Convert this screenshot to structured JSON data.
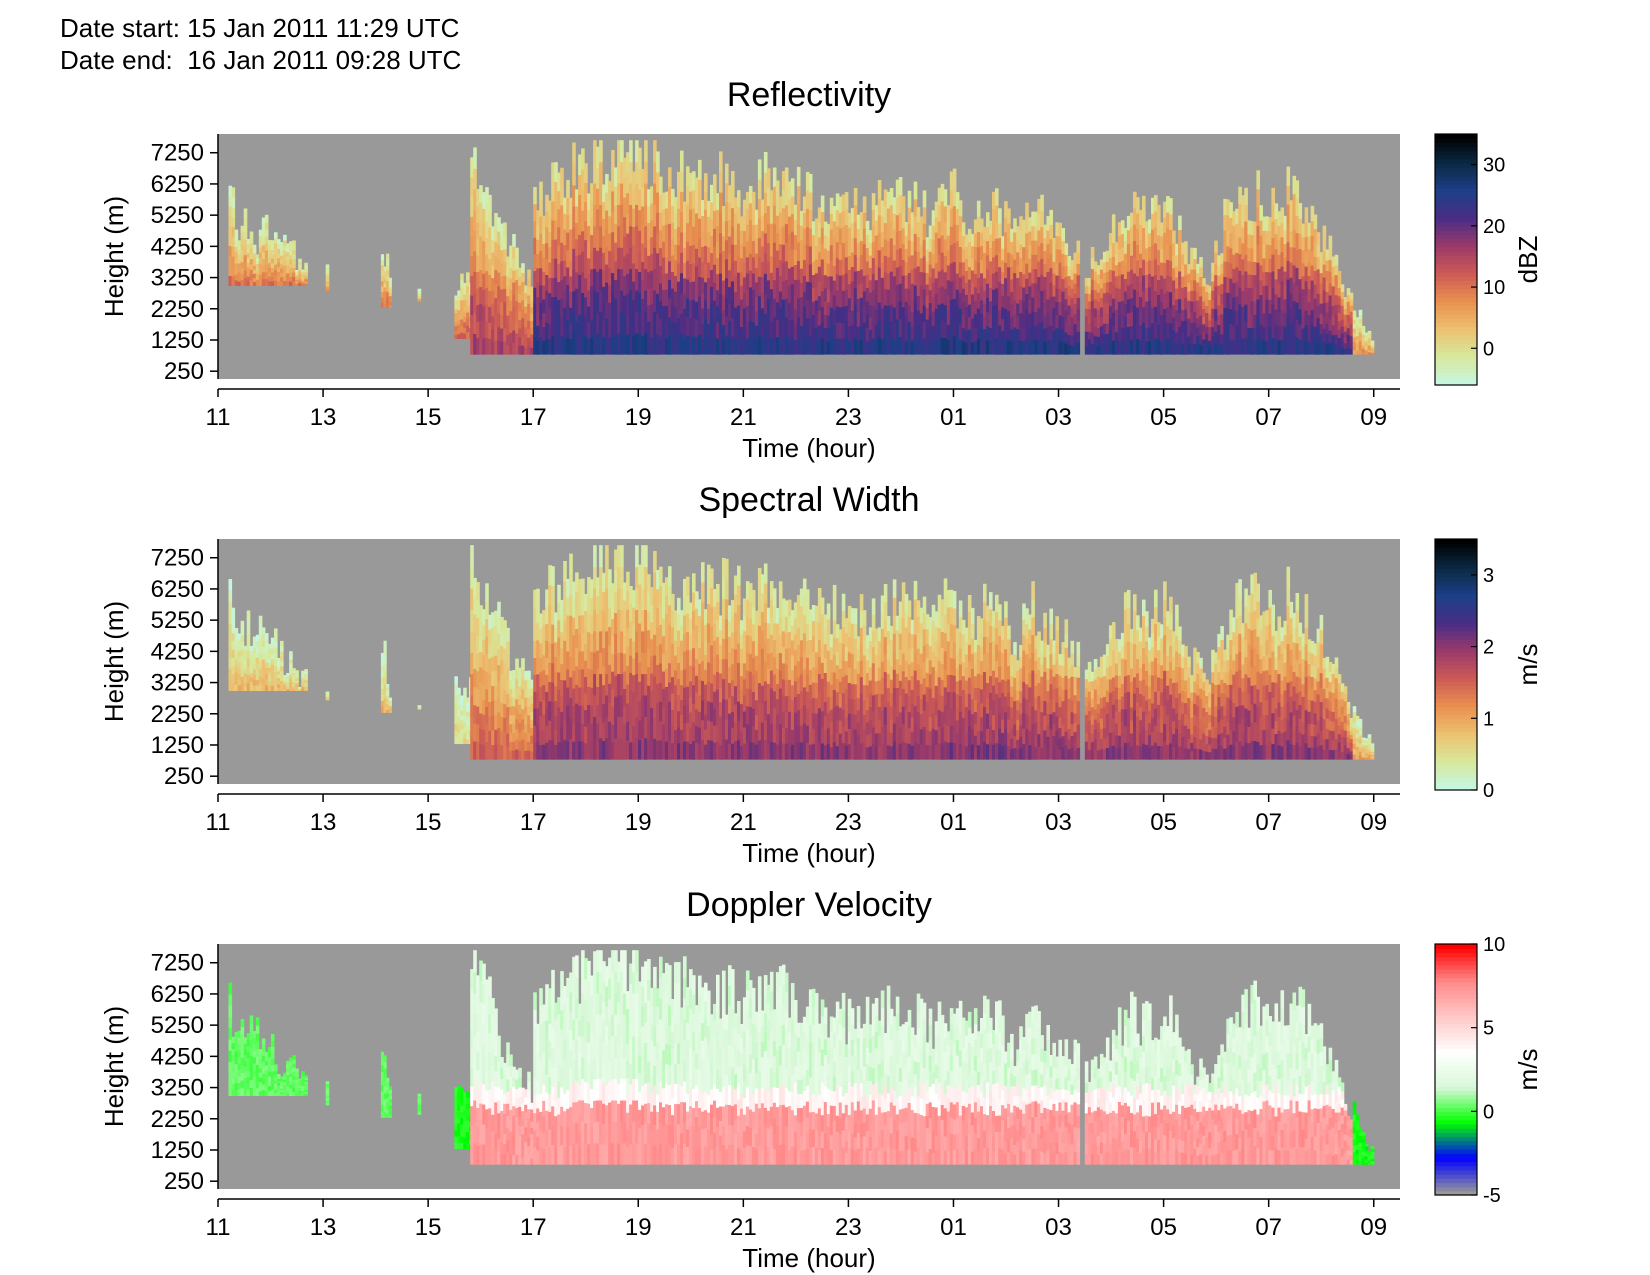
{
  "header": {
    "date_start": "Date start: 15 Jan 2011 11:29 UTC",
    "date_end": "Date end:  16 Jan 2011 09:28 UTC"
  },
  "chart_data": [
    {
      "type": "heatmap",
      "title": "Reflectivity",
      "xlabel": "Time (hour)",
      "ylabel": "Height (m)",
      "x_ticks": [
        "11",
        "13",
        "15",
        "17",
        "19",
        "21",
        "23",
        "01",
        "03",
        "05",
        "07",
        "09"
      ],
      "y_ticks": [
        "250",
        "1250",
        "2250",
        "3250",
        "4250",
        "5250",
        "6250",
        "7250"
      ],
      "xlim": [
        11,
        33.5
      ],
      "ylim": [
        0,
        7850
      ],
      "colorbar": {
        "label": "dBZ",
        "ticks": [
          "0",
          "10",
          "20",
          "30"
        ],
        "range": [
          -6,
          35
        ],
        "colors": [
          "#c6f6e0",
          "#d8e89a",
          "#ecc070",
          "#e8904f",
          "#cc5a55",
          "#9a3a6a",
          "#4a2d85",
          "#1d3f88",
          "#0b2a45",
          "#000000"
        ]
      },
      "background": "#999999",
      "segments": [
        {
          "start": 11.2,
          "end": 12.7,
          "base": 3000,
          "tops": [
            5700,
            5200,
            4900,
            4700,
            4400,
            4100,
            3500
          ],
          "level": 0.4
        },
        {
          "start": 13.05,
          "end": 13.1,
          "base": 2800,
          "tops": [
            3500
          ],
          "level": 0.35
        },
        {
          "start": 14.1,
          "end": 14.3,
          "base": 2300,
          "tops": [
            4600,
            4200,
            3300
          ],
          "level": 0.4
        },
        {
          "start": 14.8,
          "end": 14.85,
          "base": 2500,
          "tops": [
            3000
          ],
          "level": 0.3
        },
        {
          "start": 15.5,
          "end": 16.0,
          "base": 1300,
          "tops": [
            3200,
            3300,
            3400
          ],
          "level": 0.45
        },
        {
          "start": 15.8,
          "end": 17.0,
          "base": 800,
          "tops": [
            7500,
            6500,
            5000,
            4000,
            3200
          ],
          "level": 0.55
        },
        {
          "start": 17.0,
          "end": 24.7,
          "base": 800,
          "tops": [
            6000,
            6500,
            7200,
            7500,
            7500,
            6500,
            6800,
            6500,
            6300,
            6800,
            6000,
            5800,
            5500,
            5800,
            6000,
            5200
          ],
          "level": 0.78
        },
        {
          "start": 24.7,
          "end": 27.4,
          "base": 800,
          "tops": [
            5800,
            6200,
            5400,
            5900,
            5600,
            4700,
            6000,
            5200,
            4800,
            4400
          ],
          "level": 0.8
        },
        {
          "start": 27.5,
          "end": 32.6,
          "base": 800,
          "tops": [
            3800,
            4300,
            5800,
            5500,
            6000,
            4200,
            3500,
            5600,
            6200,
            5700,
            6300,
            5500,
            4300,
            2500
          ],
          "level": 0.78
        },
        {
          "start": 32.6,
          "end": 33.0,
          "base": 800,
          "tops": [
            2500,
            1800,
            1300
          ],
          "level": 0.35
        }
      ]
    },
    {
      "type": "heatmap",
      "title": "Spectral Width",
      "xlabel": "Time (hour)",
      "ylabel": "Height (m)",
      "x_ticks": [
        "11",
        "13",
        "15",
        "17",
        "19",
        "21",
        "23",
        "01",
        "03",
        "05",
        "07",
        "09"
      ],
      "y_ticks": [
        "250",
        "1250",
        "2250",
        "3250",
        "4250",
        "5250",
        "6250",
        "7250"
      ],
      "xlim": [
        11,
        33.5
      ],
      "ylim": [
        0,
        7850
      ],
      "colorbar": {
        "label": "m/s",
        "ticks": [
          "0",
          "1",
          "2",
          "3"
        ],
        "range": [
          0,
          3.5
        ],
        "colors": [
          "#c6f6e0",
          "#d8e89a",
          "#ecc070",
          "#e8904f",
          "#cc5a55",
          "#9a3a6a",
          "#4a2d85",
          "#1d3f88",
          "#0b2a45",
          "#000000"
        ]
      },
      "background": "#999999",
      "segments": [
        {
          "start": 11.2,
          "end": 12.7,
          "base": 3000,
          "tops": [
            6000,
            5300,
            5000,
            4700,
            4300,
            4000,
            3500
          ],
          "level": 0.25
        },
        {
          "start": 13.05,
          "end": 13.1,
          "base": 2700,
          "tops": [
            3300
          ],
          "level": 0.2
        },
        {
          "start": 14.1,
          "end": 14.3,
          "base": 2300,
          "tops": [
            4600,
            4200,
            3300
          ],
          "level": 0.25
        },
        {
          "start": 14.8,
          "end": 14.85,
          "base": 2400,
          "tops": [
            3000
          ],
          "level": 0.2
        },
        {
          "start": 15.5,
          "end": 16.0,
          "base": 1300,
          "tops": [
            3200,
            3300,
            3400
          ],
          "level": 0.15
        },
        {
          "start": 15.8,
          "end": 17.0,
          "base": 800,
          "tops": [
            7500,
            6500,
            5000,
            4000,
            3200
          ],
          "level": 0.45
        },
        {
          "start": 17.0,
          "end": 24.7,
          "base": 800,
          "tops": [
            6000,
            6500,
            7200,
            7500,
            7500,
            6500,
            6800,
            6500,
            6300,
            6800,
            6000,
            5800,
            5500,
            5800,
            6000,
            5200
          ],
          "level": 0.6
        },
        {
          "start": 24.7,
          "end": 27.4,
          "base": 800,
          "tops": [
            5800,
            6200,
            5400,
            5900,
            5600,
            4700,
            6000,
            5200,
            4800,
            4400
          ],
          "level": 0.62
        },
        {
          "start": 27.5,
          "end": 32.6,
          "base": 800,
          "tops": [
            3800,
            4300,
            5800,
            5500,
            6000,
            4200,
            3500,
            5600,
            6200,
            5700,
            6300,
            5500,
            4300,
            2500
          ],
          "level": 0.6
        },
        {
          "start": 32.6,
          "end": 33.0,
          "base": 800,
          "tops": [
            2500,
            1800,
            1300
          ],
          "level": 0.3
        }
      ]
    },
    {
      "type": "heatmap",
      "title": "Doppler Velocity",
      "xlabel": "Time (hour)",
      "ylabel": "Height (m)",
      "x_ticks": [
        "11",
        "13",
        "15",
        "17",
        "19",
        "21",
        "23",
        "01",
        "03",
        "05",
        "07",
        "09"
      ],
      "y_ticks": [
        "250",
        "1250",
        "2250",
        "3250",
        "4250",
        "5250",
        "6250",
        "7250"
      ],
      "xlim": [
        11,
        33.5
      ],
      "ylim": [
        0,
        7850
      ],
      "colorbar": {
        "label": "m/s",
        "ticks": [
          "-5",
          "0",
          "5",
          "10"
        ],
        "range": [
          -5,
          10
        ],
        "colors": [
          "#999999",
          "#0000ff",
          "#00ff00",
          "#d8f8d8",
          "#ffffff",
          "#ffc8c8",
          "#ff8a8a",
          "#ff0000"
        ]
      },
      "background": "#999999",
      "segments": [
        {
          "start": 11.2,
          "end": 12.7,
          "base": 3000,
          "tops": [
            6000,
            5300,
            5000,
            4700,
            4300,
            4000,
            3500
          ],
          "level": 0.35
        },
        {
          "start": 13.05,
          "end": 13.1,
          "base": 2700,
          "tops": [
            3300
          ],
          "level": 0.35
        },
        {
          "start": 14.1,
          "end": 14.3,
          "base": 2300,
          "tops": [
            4600,
            4200,
            3300
          ],
          "level": 0.35
        },
        {
          "start": 14.8,
          "end": 14.85,
          "base": 2400,
          "tops": [
            3000
          ],
          "level": 0.35
        },
        {
          "start": 15.5,
          "end": 16.0,
          "base": 1300,
          "tops": [
            3200,
            3300,
            3400
          ],
          "level": 0.3
        },
        {
          "start": 15.8,
          "end": 17.0,
          "base": 800,
          "tops": [
            7500,
            6500,
            5000,
            4000,
            3200
          ],
          "level": 0.55
        },
        {
          "start": 17.0,
          "end": 24.7,
          "base": 800,
          "tops": [
            6000,
            6500,
            7200,
            7500,
            7500,
            6500,
            6800,
            6500,
            6300,
            6800,
            6000,
            5800,
            5500,
            5800,
            6000,
            5200
          ],
          "level": 0.7
        },
        {
          "start": 24.7,
          "end": 27.4,
          "base": 800,
          "tops": [
            5800,
            6200,
            5400,
            5900,
            5600,
            4700,
            6000,
            5200,
            4800,
            4400
          ],
          "level": 0.72
        },
        {
          "start": 27.5,
          "end": 32.6,
          "base": 800,
          "tops": [
            3800,
            4300,
            5800,
            5500,
            6000,
            4200,
            3500,
            5600,
            6200,
            5700,
            6300,
            5500,
            4300,
            2500
          ],
          "level": 0.65
        },
        {
          "start": 32.6,
          "end": 33.0,
          "base": 800,
          "tops": [
            2500,
            1800,
            1300
          ],
          "level": 0.3
        }
      ]
    }
  ]
}
